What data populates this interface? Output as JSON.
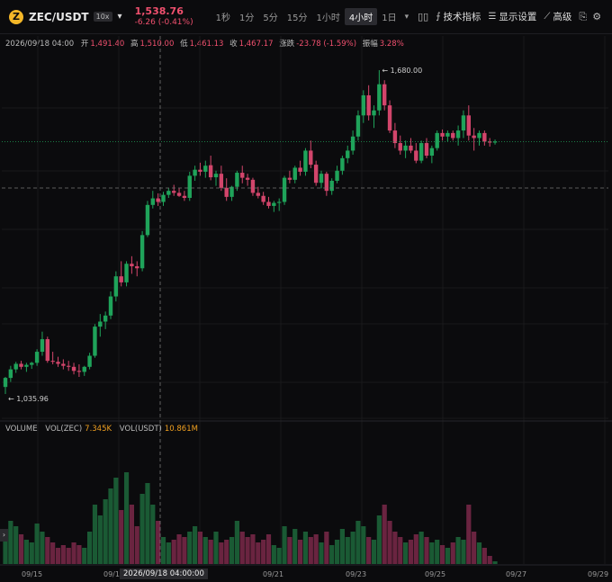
{
  "header": {
    "symbol": "ZEC/USDT",
    "leverage": "10x",
    "price": "1,538.76",
    "change": "-6.26 (-0.41%)",
    "intervals": [
      {
        "label": "1秒",
        "active": false
      },
      {
        "label": "1分",
        "active": false
      },
      {
        "label": "5分",
        "active": false
      },
      {
        "label": "15分",
        "active": false
      },
      {
        "label": "1小时",
        "active": false
      },
      {
        "label": "4小时",
        "active": true
      },
      {
        "label": "1日",
        "active": false
      }
    ],
    "indicators_label": "技术指标",
    "display_label": "显示设置",
    "advanced_label": "高级"
  },
  "ohlc": {
    "datetime": "2026/09/18 04:00",
    "open_label": "开",
    "open": "1,491.40",
    "high_label": "高",
    "high": "1,510.00",
    "low_label": "低",
    "low": "1,461.13",
    "close_label": "收",
    "close": "1,467.17",
    "change_label": "涨跌",
    "change": "-23.78 (-1.59%)",
    "amp_label": "振幅",
    "amp": "3.28%"
  },
  "volume_legend": {
    "title": "VOLUME",
    "zec_label": "VOL(ZEC)",
    "zec": "7.345K",
    "usdt_label": "VOL(USDT)",
    "usdt": "10.861M"
  },
  "chart_data": {
    "type": "candlestick",
    "interval": "4h",
    "max_label": "1,680.00",
    "min_label": "1,035.96",
    "x_ticks": [
      "09/15",
      "09/1",
      "9",
      "09/21",
      "09/23",
      "09/25",
      "09/27",
      "09/29"
    ],
    "crosshair_label": "2026/09/18 04:00:00",
    "colors": {
      "up": "#1fa35a",
      "down": "#d2456b"
    },
    "candles": [
      {
        "o": 1050,
        "h": 1070,
        "l": 1036,
        "c": 1068,
        "v": 12
      },
      {
        "o": 1068,
        "h": 1092,
        "l": 1060,
        "c": 1085,
        "v": 16
      },
      {
        "o": 1085,
        "h": 1100,
        "l": 1078,
        "c": 1096,
        "v": 14
      },
      {
        "o": 1096,
        "h": 1102,
        "l": 1085,
        "c": 1090,
        "v": 11
      },
      {
        "o": 1090,
        "h": 1098,
        "l": 1080,
        "c": 1094,
        "v": 9
      },
      {
        "o": 1094,
        "h": 1100,
        "l": 1086,
        "c": 1098,
        "v": 8
      },
      {
        "o": 1098,
        "h": 1125,
        "l": 1092,
        "c": 1120,
        "v": 15
      },
      {
        "o": 1120,
        "h": 1160,
        "l": 1112,
        "c": 1145,
        "v": 12
      },
      {
        "o": 1145,
        "h": 1150,
        "l": 1098,
        "c": 1102,
        "v": 10
      },
      {
        "o": 1102,
        "h": 1120,
        "l": 1095,
        "c": 1100,
        "v": 8
      },
      {
        "o": 1100,
        "h": 1110,
        "l": 1090,
        "c": 1096,
        "v": 6
      },
      {
        "o": 1096,
        "h": 1105,
        "l": 1085,
        "c": 1092,
        "v": 7
      },
      {
        "o": 1092,
        "h": 1102,
        "l": 1082,
        "c": 1090,
        "v": 6
      },
      {
        "o": 1090,
        "h": 1098,
        "l": 1075,
        "c": 1082,
        "v": 8
      },
      {
        "o": 1082,
        "h": 1095,
        "l": 1070,
        "c": 1080,
        "v": 7
      },
      {
        "o": 1080,
        "h": 1092,
        "l": 1072,
        "c": 1090,
        "v": 6
      },
      {
        "o": 1090,
        "h": 1118,
        "l": 1085,
        "c": 1112,
        "v": 12
      },
      {
        "o": 1112,
        "h": 1175,
        "l": 1108,
        "c": 1170,
        "v": 22
      },
      {
        "o": 1170,
        "h": 1195,
        "l": 1150,
        "c": 1180,
        "v": 18
      },
      {
        "o": 1180,
        "h": 1200,
        "l": 1165,
        "c": 1192,
        "v": 24
      },
      {
        "o": 1192,
        "h": 1240,
        "l": 1185,
        "c": 1230,
        "v": 28
      },
      {
        "o": 1230,
        "h": 1280,
        "l": 1220,
        "c": 1270,
        "v": 32
      },
      {
        "o": 1270,
        "h": 1300,
        "l": 1250,
        "c": 1258,
        "v": 20
      },
      {
        "o": 1258,
        "h": 1300,
        "l": 1250,
        "c": 1295,
        "v": 34
      },
      {
        "o": 1295,
        "h": 1310,
        "l": 1275,
        "c": 1290,
        "v": 22
      },
      {
        "o": 1290,
        "h": 1300,
        "l": 1270,
        "c": 1286,
        "v": 14
      },
      {
        "o": 1286,
        "h": 1360,
        "l": 1280,
        "c": 1352,
        "v": 26
      },
      {
        "o": 1352,
        "h": 1420,
        "l": 1348,
        "c": 1412,
        "v": 30
      },
      {
        "o": 1412,
        "h": 1440,
        "l": 1405,
        "c": 1425,
        "v": 22
      },
      {
        "o": 1425,
        "h": 1435,
        "l": 1410,
        "c": 1418,
        "v": 16
      },
      {
        "o": 1418,
        "h": 1438,
        "l": 1410,
        "c": 1432,
        "v": 10
      },
      {
        "o": 1432,
        "h": 1445,
        "l": 1426,
        "c": 1440,
        "v": 8
      },
      {
        "o": 1440,
        "h": 1452,
        "l": 1430,
        "c": 1436,
        "v": 9
      },
      {
        "o": 1436,
        "h": 1445,
        "l": 1428,
        "c": 1430,
        "v": 11
      },
      {
        "o": 1430,
        "h": 1440,
        "l": 1420,
        "c": 1426,
        "v": 10
      },
      {
        "o": 1426,
        "h": 1478,
        "l": 1420,
        "c": 1470,
        "v": 12
      },
      {
        "o": 1470,
        "h": 1490,
        "l": 1460,
        "c": 1482,
        "v": 14
      },
      {
        "o": 1482,
        "h": 1496,
        "l": 1470,
        "c": 1478,
        "v": 12
      },
      {
        "o": 1478,
        "h": 1500,
        "l": 1466,
        "c": 1490,
        "v": 10
      },
      {
        "o": 1491,
        "h": 1510,
        "l": 1461,
        "c": 1467,
        "v": 9
      },
      {
        "o": 1467,
        "h": 1480,
        "l": 1450,
        "c": 1474,
        "v": 12
      },
      {
        "o": 1474,
        "h": 1490,
        "l": 1440,
        "c": 1446,
        "v": 8
      },
      {
        "o": 1446,
        "h": 1465,
        "l": 1420,
        "c": 1428,
        "v": 9
      },
      {
        "o": 1428,
        "h": 1450,
        "l": 1420,
        "c": 1448,
        "v": 10
      },
      {
        "o": 1448,
        "h": 1480,
        "l": 1440,
        "c": 1476,
        "v": 16
      },
      {
        "o": 1476,
        "h": 1490,
        "l": 1455,
        "c": 1466,
        "v": 12
      },
      {
        "o": 1466,
        "h": 1474,
        "l": 1450,
        "c": 1462,
        "v": 10
      },
      {
        "o": 1462,
        "h": 1466,
        "l": 1430,
        "c": 1436,
        "v": 11
      },
      {
        "o": 1436,
        "h": 1448,
        "l": 1425,
        "c": 1430,
        "v": 8
      },
      {
        "o": 1430,
        "h": 1438,
        "l": 1412,
        "c": 1418,
        "v": 9
      },
      {
        "o": 1418,
        "h": 1428,
        "l": 1405,
        "c": 1410,
        "v": 11
      },
      {
        "o": 1410,
        "h": 1420,
        "l": 1398,
        "c": 1416,
        "v": 7
      },
      {
        "o": 1416,
        "h": 1425,
        "l": 1400,
        "c": 1418,
        "v": 6
      },
      {
        "o": 1418,
        "h": 1470,
        "l": 1412,
        "c": 1466,
        "v": 14
      },
      {
        "o": 1466,
        "h": 1480,
        "l": 1455,
        "c": 1462,
        "v": 10
      },
      {
        "o": 1462,
        "h": 1490,
        "l": 1455,
        "c": 1486,
        "v": 13
      },
      {
        "o": 1486,
        "h": 1500,
        "l": 1470,
        "c": 1478,
        "v": 9
      },
      {
        "o": 1478,
        "h": 1525,
        "l": 1470,
        "c": 1520,
        "v": 12
      },
      {
        "o": 1520,
        "h": 1540,
        "l": 1485,
        "c": 1492,
        "v": 10
      },
      {
        "o": 1492,
        "h": 1500,
        "l": 1450,
        "c": 1456,
        "v": 11
      },
      {
        "o": 1456,
        "h": 1480,
        "l": 1445,
        "c": 1474,
        "v": 8
      },
      {
        "o": 1474,
        "h": 1478,
        "l": 1430,
        "c": 1440,
        "v": 12
      },
      {
        "o": 1440,
        "h": 1465,
        "l": 1432,
        "c": 1460,
        "v": 7
      },
      {
        "o": 1460,
        "h": 1490,
        "l": 1455,
        "c": 1480,
        "v": 9
      },
      {
        "o": 1480,
        "h": 1510,
        "l": 1472,
        "c": 1505,
        "v": 13
      },
      {
        "o": 1505,
        "h": 1530,
        "l": 1495,
        "c": 1520,
        "v": 10
      },
      {
        "o": 1520,
        "h": 1560,
        "l": 1512,
        "c": 1548,
        "v": 12
      },
      {
        "o": 1548,
        "h": 1600,
        "l": 1540,
        "c": 1590,
        "v": 16
      },
      {
        "o": 1590,
        "h": 1640,
        "l": 1575,
        "c": 1630,
        "v": 14
      },
      {
        "o": 1630,
        "h": 1650,
        "l": 1580,
        "c": 1590,
        "v": 10
      },
      {
        "o": 1590,
        "h": 1610,
        "l": 1565,
        "c": 1600,
        "v": 9
      },
      {
        "o": 1600,
        "h": 1680,
        "l": 1590,
        "c": 1652,
        "v": 18
      },
      {
        "o": 1652,
        "h": 1660,
        "l": 1600,
        "c": 1610,
        "v": 22
      },
      {
        "o": 1610,
        "h": 1620,
        "l": 1555,
        "c": 1560,
        "v": 16
      },
      {
        "o": 1560,
        "h": 1575,
        "l": 1525,
        "c": 1535,
        "v": 12
      },
      {
        "o": 1535,
        "h": 1550,
        "l": 1512,
        "c": 1520,
        "v": 10
      },
      {
        "o": 1520,
        "h": 1540,
        "l": 1505,
        "c": 1530,
        "v": 8
      },
      {
        "o": 1530,
        "h": 1545,
        "l": 1515,
        "c": 1520,
        "v": 9
      },
      {
        "o": 1520,
        "h": 1535,
        "l": 1495,
        "c": 1500,
        "v": 11
      },
      {
        "o": 1500,
        "h": 1540,
        "l": 1495,
        "c": 1535,
        "v": 12
      },
      {
        "o": 1535,
        "h": 1545,
        "l": 1505,
        "c": 1510,
        "v": 10
      },
      {
        "o": 1510,
        "h": 1530,
        "l": 1495,
        "c": 1525,
        "v": 8
      },
      {
        "o": 1525,
        "h": 1560,
        "l": 1520,
        "c": 1555,
        "v": 9
      },
      {
        "o": 1555,
        "h": 1562,
        "l": 1540,
        "c": 1548,
        "v": 7
      },
      {
        "o": 1548,
        "h": 1560,
        "l": 1538,
        "c": 1555,
        "v": 6
      },
      {
        "o": 1555,
        "h": 1560,
        "l": 1540,
        "c": 1545,
        "v": 8
      },
      {
        "o": 1545,
        "h": 1570,
        "l": 1530,
        "c": 1560,
        "v": 10
      },
      {
        "o": 1560,
        "h": 1600,
        "l": 1545,
        "c": 1590,
        "v": 9
      },
      {
        "o": 1590,
        "h": 1610,
        "l": 1540,
        "c": 1550,
        "v": 22
      },
      {
        "o": 1550,
        "h": 1565,
        "l": 1520,
        "c": 1545,
        "v": 12
      },
      {
        "o": 1545,
        "h": 1560,
        "l": 1530,
        "c": 1555,
        "v": 8
      },
      {
        "o": 1555,
        "h": 1560,
        "l": 1530,
        "c": 1538,
        "v": 6
      },
      {
        "o": 1538,
        "h": 1545,
        "l": 1528,
        "c": 1536,
        "v": 3
      },
      {
        "o": 1536,
        "h": 1542,
        "l": 1532,
        "c": 1538,
        "v": 1
      }
    ]
  }
}
